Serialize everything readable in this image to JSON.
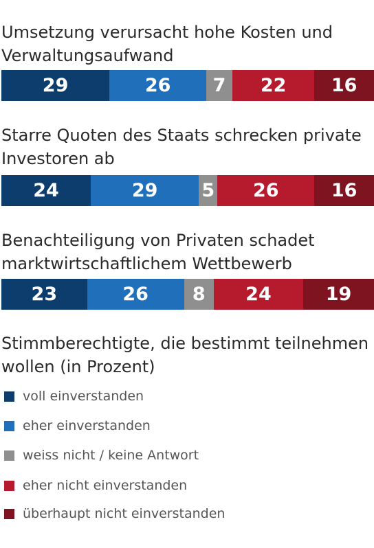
{
  "chart_data": {
    "type": "bar",
    "orientation": "horizontal-stacked",
    "title": "Stimmberechtigte, die bestimmt teilnehmen wollen (in Prozent)",
    "categories": [
      "Umsetzung verursacht hohe Kosten und Verwaltungsaufwand",
      "Starre Quoten des Staats schrecken private Investoren ab",
      "Benachteiligung von Privaten schadet marktwirtschaftlichem Wettbewerb"
    ],
    "series": [
      {
        "name": "voll einverstanden",
        "color": "#0d3d6c",
        "values": [
          29,
          24,
          23
        ]
      },
      {
        "name": "eher einverstanden",
        "color": "#1f6fba",
        "values": [
          26,
          29,
          26
        ]
      },
      {
        "name": "weiss nicht / keine Antwort",
        "color": "#8f8f8f",
        "values": [
          7,
          5,
          8
        ]
      },
      {
        "name": "eher nicht einverstanden",
        "color": "#b51b2c",
        "values": [
          22,
          26,
          24
        ]
      },
      {
        "name": "überhaupt nicht einverstanden",
        "color": "#7d1420",
        "values": [
          16,
          16,
          19
        ]
      }
    ],
    "xlim": [
      0,
      100
    ],
    "grid": false,
    "legend_placement": "bottom"
  }
}
